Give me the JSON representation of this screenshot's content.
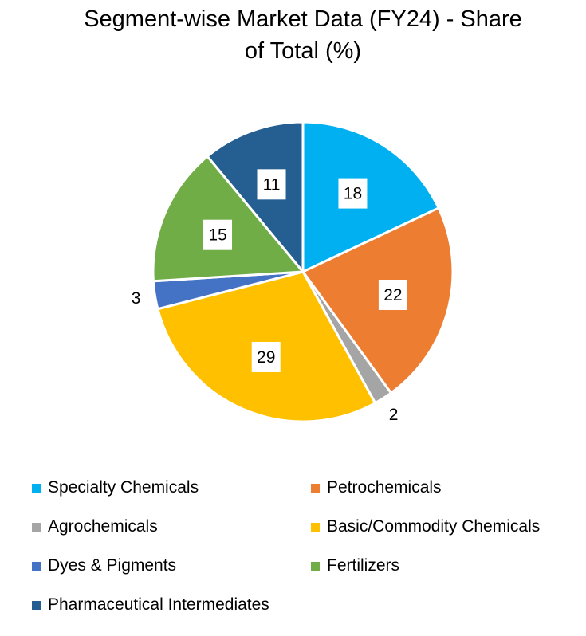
{
  "chart_data": {
    "type": "pie",
    "title_line1": "Segment-wise Market Data (FY24) - Share",
    "title_line2": "of Total (%)",
    "slices": [
      {
        "label": "Specialty Chemicals",
        "value": 18,
        "color": "#00B0F0"
      },
      {
        "label": "Petrochemicals",
        "value": 22,
        "color": "#ED7D31"
      },
      {
        "label": "Agrochemicals",
        "value": 2,
        "color": "#A5A5A5"
      },
      {
        "label": "Basic/Commodity Chemicals",
        "value": 29,
        "color": "#FFC000"
      },
      {
        "label": "Dyes & Pigments",
        "value": 3,
        "color": "#4472C4"
      },
      {
        "label": "Fertilizers",
        "value": 15,
        "color": "#70AD47"
      },
      {
        "label": "Pharmaceutical Intermediates",
        "value": 11,
        "color": "#255E91"
      }
    ],
    "legend_position": "bottom"
  }
}
